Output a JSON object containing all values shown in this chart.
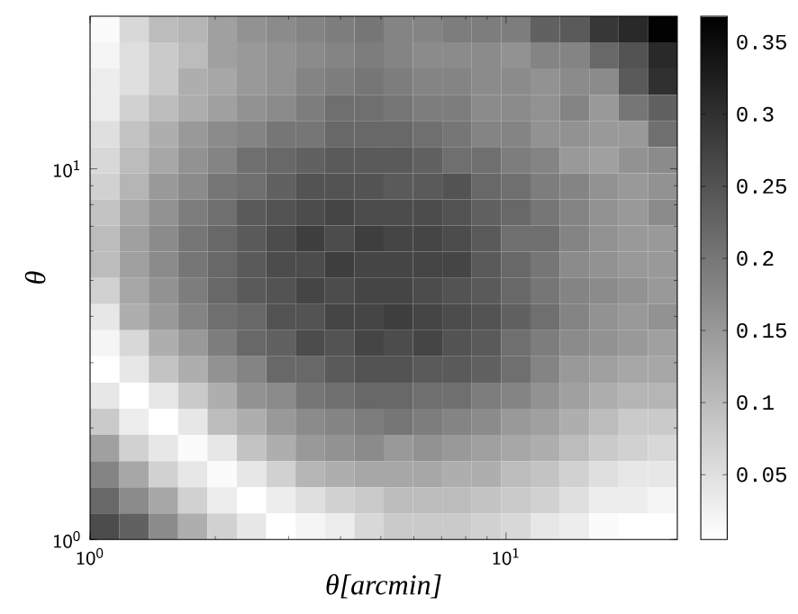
{
  "chart_data": {
    "type": "heatmap",
    "xlabel": "θ[arcmin]",
    "ylabel": "θ",
    "log": "xy",
    "x": [
      1.085,
      1.276,
      1.501,
      1.766,
      2.078,
      2.445,
      2.876,
      3.383,
      3.98,
      4.683,
      5.51,
      6.48,
      7.62,
      8.97,
      10.55,
      12.42,
      14.61,
      17.19,
      20.22,
      23.78
    ],
    "y": [
      23.78,
      20.22,
      17.19,
      14.61,
      12.42,
      10.55,
      8.97,
      7.62,
      6.48,
      5.51,
      4.683,
      3.98,
      3.383,
      2.876,
      2.445,
      2.078,
      1.766,
      1.501,
      1.276,
      1.085
    ],
    "xlim": [
      1,
      25.8
    ],
    "ylim": [
      1,
      25.8
    ],
    "xticks": [
      {
        "value": 1,
        "label": "10$^{0}$"
      },
      {
        "value": 10,
        "label": "10$^{1}$"
      }
    ],
    "yticks": [
      {
        "value": 1,
        "label": "10$^{0}$"
      },
      {
        "value": 10,
        "label": "10$^{1}$"
      }
    ],
    "clim": [
      0.005,
      0.368
    ],
    "cticks": [
      0.05,
      0.1,
      0.15,
      0.2,
      0.25,
      0.3,
      0.35
    ],
    "cells": [
      [
        0.01,
        0.06,
        0.1,
        0.11,
        0.14,
        0.16,
        0.17,
        0.18,
        0.19,
        0.2,
        0.18,
        0.18,
        0.19,
        0.19,
        0.19,
        0.23,
        0.24,
        0.29,
        0.31,
        0.365
      ],
      [
        0.02,
        0.05,
        0.08,
        0.1,
        0.14,
        0.15,
        0.16,
        0.17,
        0.18,
        0.19,
        0.18,
        0.17,
        0.17,
        0.17,
        0.16,
        0.18,
        0.18,
        0.22,
        0.25,
        0.31
      ],
      [
        0.03,
        0.05,
        0.08,
        0.12,
        0.13,
        0.15,
        0.16,
        0.18,
        0.19,
        0.2,
        0.19,
        0.18,
        0.18,
        0.17,
        0.17,
        0.16,
        0.17,
        0.17,
        0.24,
        0.3
      ],
      [
        0.03,
        0.07,
        0.1,
        0.12,
        0.14,
        0.16,
        0.17,
        0.19,
        0.21,
        0.21,
        0.2,
        0.19,
        0.19,
        0.17,
        0.17,
        0.16,
        0.18,
        0.15,
        0.2,
        0.23
      ],
      [
        0.05,
        0.09,
        0.12,
        0.15,
        0.17,
        0.18,
        0.2,
        0.2,
        0.22,
        0.22,
        0.22,
        0.21,
        0.2,
        0.18,
        0.18,
        0.16,
        0.16,
        0.15,
        0.15,
        0.21
      ],
      [
        0.06,
        0.1,
        0.13,
        0.16,
        0.18,
        0.21,
        0.22,
        0.23,
        0.24,
        0.24,
        0.24,
        0.23,
        0.21,
        0.21,
        0.19,
        0.18,
        0.15,
        0.14,
        0.16,
        0.17
      ],
      [
        0.07,
        0.11,
        0.15,
        0.17,
        0.2,
        0.21,
        0.23,
        0.25,
        0.25,
        0.25,
        0.24,
        0.24,
        0.25,
        0.22,
        0.21,
        0.19,
        0.18,
        0.16,
        0.15,
        0.16
      ],
      [
        0.09,
        0.13,
        0.16,
        0.19,
        0.21,
        0.24,
        0.25,
        0.26,
        0.27,
        0.26,
        0.26,
        0.26,
        0.25,
        0.23,
        0.22,
        0.2,
        0.18,
        0.16,
        0.15,
        0.17
      ],
      [
        0.1,
        0.14,
        0.17,
        0.2,
        0.22,
        0.24,
        0.26,
        0.28,
        0.26,
        0.28,
        0.27,
        0.27,
        0.26,
        0.24,
        0.21,
        0.21,
        0.18,
        0.16,
        0.15,
        0.15
      ],
      [
        0.1,
        0.14,
        0.17,
        0.2,
        0.22,
        0.24,
        0.26,
        0.26,
        0.28,
        0.27,
        0.27,
        0.27,
        0.27,
        0.24,
        0.22,
        0.2,
        0.17,
        0.16,
        0.15,
        0.15
      ],
      [
        0.07,
        0.13,
        0.16,
        0.19,
        0.22,
        0.24,
        0.25,
        0.27,
        0.26,
        0.27,
        0.27,
        0.26,
        0.25,
        0.24,
        0.22,
        0.2,
        0.18,
        0.17,
        0.16,
        0.15
      ],
      [
        0.04,
        0.12,
        0.15,
        0.18,
        0.21,
        0.22,
        0.25,
        0.25,
        0.27,
        0.27,
        0.28,
        0.27,
        0.26,
        0.25,
        0.23,
        0.21,
        0.18,
        0.16,
        0.15,
        0.16
      ],
      [
        0.02,
        0.06,
        0.12,
        0.15,
        0.19,
        0.22,
        0.23,
        0.26,
        0.25,
        0.27,
        0.26,
        0.27,
        0.25,
        0.24,
        0.21,
        0.19,
        0.17,
        0.16,
        0.15,
        0.14
      ],
      [
        0.005,
        0.04,
        0.09,
        0.12,
        0.16,
        0.18,
        0.22,
        0.22,
        0.24,
        0.25,
        0.25,
        0.24,
        0.24,
        0.23,
        0.21,
        0.18,
        0.15,
        0.14,
        0.13,
        0.13
      ],
      [
        0.04,
        0.005,
        0.04,
        0.08,
        0.12,
        0.16,
        0.17,
        0.2,
        0.21,
        0.22,
        0.22,
        0.21,
        0.21,
        0.19,
        0.18,
        0.16,
        0.14,
        0.12,
        0.11,
        0.11
      ],
      [
        0.08,
        0.03,
        0.005,
        0.04,
        0.1,
        0.12,
        0.15,
        0.17,
        0.18,
        0.19,
        0.2,
        0.19,
        0.18,
        0.17,
        0.15,
        0.14,
        0.12,
        0.1,
        0.08,
        0.08
      ],
      [
        0.14,
        0.07,
        0.04,
        0.01,
        0.04,
        0.09,
        0.12,
        0.15,
        0.16,
        0.17,
        0.15,
        0.16,
        0.15,
        0.14,
        0.13,
        0.12,
        0.1,
        0.08,
        0.07,
        0.06
      ],
      [
        0.18,
        0.13,
        0.07,
        0.04,
        0.01,
        0.04,
        0.07,
        0.11,
        0.12,
        0.13,
        0.13,
        0.13,
        0.12,
        0.12,
        0.1,
        0.09,
        0.07,
        0.05,
        0.04,
        0.04
      ],
      [
        0.22,
        0.17,
        0.13,
        0.07,
        0.03,
        0.005,
        0.03,
        0.05,
        0.07,
        0.08,
        0.1,
        0.1,
        0.1,
        0.09,
        0.08,
        0.07,
        0.05,
        0.03,
        0.03,
        0.02
      ],
      [
        0.26,
        0.23,
        0.17,
        0.12,
        0.07,
        0.04,
        0.005,
        0.02,
        0.03,
        0.06,
        0.08,
        0.08,
        0.08,
        0.07,
        0.06,
        0.04,
        0.03,
        0.01,
        0.005,
        0.005
      ]
    ]
  }
}
